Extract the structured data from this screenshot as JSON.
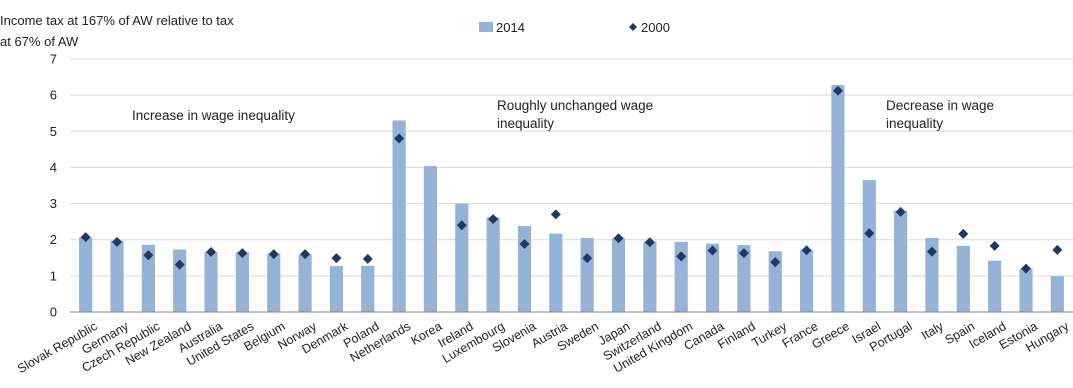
{
  "chart_data": {
    "type": "bar",
    "ylabel_lines": [
      "Income tax at 167% of AW relative to tax",
      "at 67% of AW"
    ],
    "ylim": [
      0,
      7
    ],
    "yticks": [
      "0",
      "1",
      "2",
      "3",
      "4",
      "5",
      "6",
      "7"
    ],
    "grid": true,
    "legend_position": "top-center",
    "colors": {
      "bar": "#95b3d7",
      "marker": "#1f3864",
      "grid": "#d9d9d9",
      "axis": "#868686"
    },
    "categories": [
      "Slovak Republic",
      "Germany",
      "Czech Republic",
      "New Zealand",
      "Australia",
      "United States",
      "Belgium",
      "Norway",
      "Denmark",
      "Poland",
      "Netherlands",
      "Korea",
      "Ireland",
      "Luxembourg",
      "Slovenia",
      "Austria",
      "Sweden",
      "Japan",
      "Switzerland",
      "United Kingdom",
      "Canada",
      "Finland",
      "Turkey",
      "France",
      "Greece",
      "Israel",
      "Portugal",
      "Italy",
      "Spain",
      "Iceland",
      "Estonia",
      "Hungary"
    ],
    "series": [
      {
        "name": "2014",
        "kind": "bar",
        "values": [
          2.07,
          1.97,
          1.86,
          1.73,
          1.66,
          1.65,
          1.62,
          1.6,
          1.27,
          1.28,
          5.3,
          4.04,
          3.0,
          2.62,
          2.38,
          2.17,
          2.05,
          2.05,
          1.95,
          1.94,
          1.89,
          1.85,
          1.68,
          1.72,
          6.28,
          3.65,
          2.8,
          2.05,
          1.83,
          1.42,
          1.2,
          0.99
        ]
      },
      {
        "name": "2000",
        "kind": "marker",
        "values": [
          2.07,
          1.94,
          1.57,
          1.31,
          1.66,
          1.63,
          1.6,
          1.6,
          1.49,
          1.47,
          4.8,
          null,
          2.4,
          2.57,
          1.88,
          2.7,
          1.49,
          2.04,
          1.93,
          1.54,
          1.7,
          1.63,
          1.38,
          1.71,
          6.12,
          2.18,
          2.77,
          1.67,
          2.16,
          1.83,
          1.2,
          1.72
        ]
      }
    ],
    "annotations": [
      {
        "text": "Increase in wage inequality"
      },
      {
        "text": "Roughly unchanged  wage inequality"
      },
      {
        "text": "Decrease in wage inequality"
      }
    ]
  }
}
